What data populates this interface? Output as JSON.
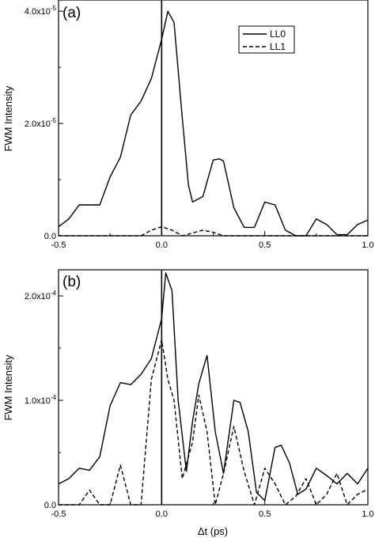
{
  "figure": {
    "shared_xlabel": "Δt (ps)"
  },
  "chart_data": [
    {
      "type": "line",
      "panel_label": "(a)",
      "ylabel": "FWM Intensity",
      "xlim": [
        -0.5,
        1.0
      ],
      "ylim": [
        0,
        4.2e-05
      ],
      "x_ticks": [
        -0.5,
        0.0,
        0.5,
        1.0
      ],
      "x_tick_labels": [
        "-0.5",
        "0.0",
        "0.5",
        "1.0"
      ],
      "y_ticks": [
        0,
        2e-05,
        4e-05
      ],
      "y_tick_labels": [
        {
          "mant": "0.0",
          "exp": ""
        },
        {
          "mant": "2.0x10",
          "exp": "-5"
        },
        {
          "mant": "4.0x10",
          "exp": "-5"
        }
      ],
      "vline_x": 0.0,
      "grid": false,
      "legend_position": "top-right",
      "series": [
        {
          "name": "LL0",
          "style": "solid",
          "x": [
            -0.5,
            -0.45,
            -0.4,
            -0.35,
            -0.3,
            -0.25,
            -0.2,
            -0.15,
            -0.1,
            -0.05,
            0.0,
            0.03,
            0.06,
            0.1,
            0.13,
            0.15,
            0.2,
            0.25,
            0.28,
            0.3,
            0.35,
            0.4,
            0.45,
            0.5,
            0.55,
            0.6,
            0.65,
            0.7,
            0.75,
            0.8,
            0.85,
            0.9,
            0.95,
            1.0
          ],
          "y": [
            1.6e-06,
            3e-06,
            5.5e-06,
            5.5e-06,
            5.5e-06,
            1.05e-05,
            1.4e-05,
            2.15e-05,
            2.4e-05,
            2.8e-05,
            3.5e-05,
            4e-05,
            3.8e-05,
            2.1e-05,
            9e-06,
            6e-06,
            7e-06,
            1.35e-05,
            1.37e-05,
            1.33e-05,
            5e-06,
            1.5e-06,
            1.5e-06,
            6e-06,
            5.5e-06,
            1e-06,
            0,
            0,
            3e-06,
            2e-06,
            2e-07,
            2e-07,
            2e-06,
            2.8e-06
          ]
        },
        {
          "name": "LL1",
          "style": "dashed",
          "x": [
            -0.5,
            -0.4,
            -0.3,
            -0.2,
            -0.1,
            -0.05,
            0.0,
            0.05,
            0.1,
            0.15,
            0.2,
            0.25,
            0.3,
            0.4,
            0.5,
            0.6,
            0.7,
            0.8,
            0.9,
            1.0
          ],
          "y": [
            0,
            0,
            0,
            0,
            0,
            1e-06,
            1.6e-06,
            1e-06,
            0,
            5e-07,
            1e-06,
            6e-07,
            0,
            0,
            0,
            0,
            0,
            0,
            0,
            0
          ]
        }
      ]
    },
    {
      "type": "line",
      "panel_label": "(b)",
      "ylabel": "FWM Intensity",
      "xlabel": "Δt (ps)",
      "xlim": [
        -0.5,
        1.0
      ],
      "ylim": [
        0,
        0.000225
      ],
      "x_ticks": [
        -0.5,
        0.0,
        0.5,
        1.0
      ],
      "x_tick_labels": [
        "-0.5",
        "0.0",
        "0.5",
        "1.0"
      ],
      "y_ticks": [
        0,
        0.0001,
        0.0002
      ],
      "y_tick_labels": [
        {
          "mant": "0.0",
          "exp": ""
        },
        {
          "mant": "1.0x10",
          "exp": "-4"
        },
        {
          "mant": "2.0x10",
          "exp": "-4"
        }
      ],
      "vline_x": 0.0,
      "grid": false,
      "series": [
        {
          "name": "LL0",
          "style": "solid",
          "x": [
            -0.5,
            -0.45,
            -0.4,
            -0.35,
            -0.3,
            -0.25,
            -0.2,
            -0.15,
            -0.1,
            -0.05,
            0.0,
            0.02,
            0.05,
            0.08,
            0.12,
            0.15,
            0.18,
            0.22,
            0.26,
            0.3,
            0.35,
            0.38,
            0.42,
            0.46,
            0.5,
            0.55,
            0.58,
            0.62,
            0.66,
            0.7,
            0.75,
            0.8,
            0.85,
            0.9,
            0.95,
            1.0
          ],
          "y": [
            2e-05,
            2.5e-05,
            3.5e-05,
            3.3e-05,
            4.6e-05,
            9.5e-05,
            0.000117,
            0.000115,
            0.000125,
            0.00014,
            0.000178,
            0.000222,
            0.000205,
            0.0001,
            3.2e-05,
            8e-05,
            0.000116,
            0.000143,
            7e-05,
            3e-05,
            0.0001,
            9.8e-05,
            7e-05,
            1.2e-05,
            4e-06,
            5.5e-05,
            5.7e-05,
            4e-05,
            1e-05,
            1.5e-05,
            3.5e-05,
            2.8e-05,
            2e-05,
            3e-05,
            2e-05,
            3.5e-05
          ]
        },
        {
          "name": "LL1",
          "style": "dashed",
          "x": [
            -0.5,
            -0.45,
            -0.4,
            -0.35,
            -0.3,
            -0.25,
            -0.2,
            -0.15,
            -0.1,
            -0.05,
            0.0,
            0.03,
            0.06,
            0.1,
            0.15,
            0.18,
            0.22,
            0.26,
            0.3,
            0.35,
            0.4,
            0.45,
            0.5,
            0.55,
            0.6,
            0.65,
            0.7,
            0.75,
            0.8,
            0.85,
            0.9,
            0.95,
            1.0
          ],
          "y": [
            0,
            0,
            0,
            1.4e-05,
            0,
            0,
            3.8e-05,
            0,
            0,
            0.00012,
            0.000158,
            0.00012,
            0.0001,
            2.5e-05,
            6e-05,
            0.000105,
            7e-05,
            0,
            3e-05,
            7.5e-05,
            3.2e-05,
            0,
            3.5e-05,
            2e-05,
            0,
            8e-06,
            2.5e-05,
            0,
            1e-05,
            3e-05,
            0,
            1e-05,
            1.5e-05
          ]
        }
      ]
    }
  ]
}
